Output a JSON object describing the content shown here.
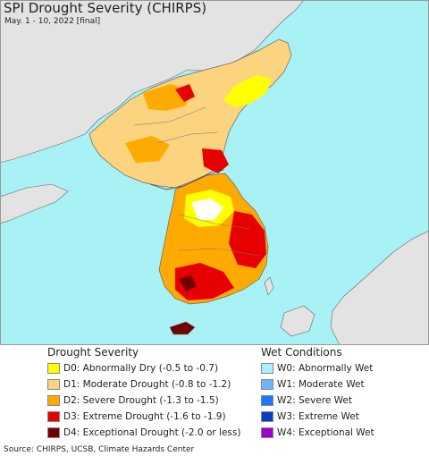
{
  "title": "SPI Drought Severity (CHIRPS)",
  "subtitle": "May. 1 - 10, 2022 [final]",
  "colors": {
    "water": "#a8f2f6",
    "land_outside": "#e3e3e3",
    "D0": "#ffff00",
    "D1": "#fcd37f",
    "D2": "#ffaa00",
    "D3": "#e60000",
    "D4": "#730000",
    "W0": "#aaf0ff",
    "W1": "#6cb6ff",
    "W2": "#1e78ff",
    "W3": "#0a3cc8",
    "W4": "#a000c8"
  },
  "legend_drought": {
    "title": "Drought Severity",
    "items": [
      {
        "code": "D0",
        "label": "D0: Abnormally Dry (-0.5 to -0.7)"
      },
      {
        "code": "D1",
        "label": "D1: Moderate Drought (-0.8 to -1.2)"
      },
      {
        "code": "D2",
        "label": "D2: Severe Drought (-1.3 to -1.5)"
      },
      {
        "code": "D3",
        "label": "D3: Extreme Drought (-1.6 to -1.9)"
      },
      {
        "code": "D4",
        "label": "D4: Exceptional Drought (-2.0 or less)"
      }
    ]
  },
  "legend_wet": {
    "title": "Wet Conditions",
    "items": [
      {
        "code": "W0",
        "label": "W0: Abnormally Wet"
      },
      {
        "code": "W1",
        "label": "W1: Moderate Wet"
      },
      {
        "code": "W2",
        "label": "W2: Severe Wet"
      },
      {
        "code": "W3",
        "label": "W3: Extreme Wet"
      },
      {
        "code": "W4",
        "label": "W4: Exceptional Wet"
      }
    ]
  },
  "source": "Source: CHIRPS, UCSB, Climate Hazards Center"
}
